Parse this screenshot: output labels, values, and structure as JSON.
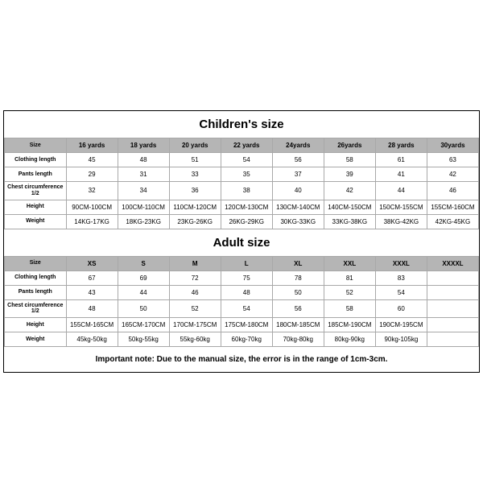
{
  "children": {
    "title": "Children's size",
    "headers": [
      "Size",
      "16 yards",
      "18 yards",
      "20 yards",
      "22 yards",
      "24yards",
      "26yards",
      "28 yards",
      "30yards"
    ],
    "rows": [
      {
        "label": "Clothing length",
        "cells": [
          "45",
          "48",
          "51",
          "54",
          "56",
          "58",
          "61",
          "63"
        ]
      },
      {
        "label": "Pants length",
        "cells": [
          "29",
          "31",
          "33",
          "35",
          "37",
          "39",
          "41",
          "42"
        ]
      },
      {
        "label": "Chest circumference 1/2",
        "cells": [
          "32",
          "34",
          "36",
          "38",
          "40",
          "42",
          "44",
          "46"
        ]
      },
      {
        "label": "Height",
        "cells": [
          "90CM-100CM",
          "100CM-110CM",
          "110CM-120CM",
          "120CM-130CM",
          "130CM-140CM",
          "140CM-150CM",
          "150CM-155CM",
          "155CM-160CM"
        ]
      },
      {
        "label": "Weight",
        "cells": [
          "14KG-17KG",
          "18KG-23KG",
          "23KG-26KG",
          "26KG-29KG",
          "30KG-33KG",
          "33KG-38KG",
          "38KG-42KG",
          "42KG-45KG"
        ]
      }
    ]
  },
  "adult": {
    "title": "Adult size",
    "headers": [
      "Size",
      "XS",
      "S",
      "M",
      "L",
      "XL",
      "XXL",
      "XXXL",
      "XXXXL"
    ],
    "rows": [
      {
        "label": "Clothing length",
        "cells": [
          "67",
          "69",
          "72",
          "75",
          "78",
          "81",
          "83",
          ""
        ]
      },
      {
        "label": "Pants length",
        "cells": [
          "43",
          "44",
          "46",
          "48",
          "50",
          "52",
          "54",
          ""
        ]
      },
      {
        "label": "Chest circumference 1/2",
        "cells": [
          "48",
          "50",
          "52",
          "54",
          "56",
          "58",
          "60",
          ""
        ]
      },
      {
        "label": "Height",
        "cells": [
          "155CM-165CM",
          "165CM-170CM",
          "170CM-175CM",
          "175CM-180CM",
          "180CM-185CM",
          "185CM-190CM",
          "190CM-195CM",
          ""
        ]
      },
      {
        "label": "Weight",
        "cells": [
          "45kg-50kg",
          "50kg-55kg",
          "55kg-60kg",
          "60kg-70kg",
          "70kg-80kg",
          "80kg-90kg",
          "90kg-105kg",
          ""
        ]
      }
    ]
  },
  "note": "Important note: Due to the manual size, the error is in the range of 1cm-3cm.",
  "style": {
    "header_bg": "#b5b5b5",
    "border_color": "#a8a8a8",
    "outer_border_color": "#000000",
    "background": "#ffffff",
    "title_fontsize": 15,
    "cell_fontsize": 8,
    "label_fontsize": 7,
    "note_fontsize": 10,
    "col0_width_pct": 13
  }
}
